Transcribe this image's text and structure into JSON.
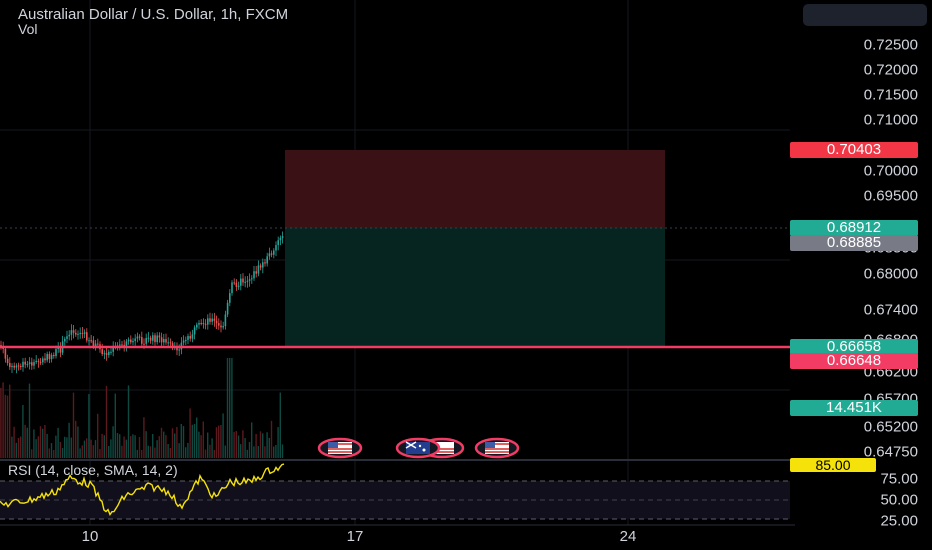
{
  "header": {
    "title": "Australian Dollar / U.S. Dollar, 1h, FXCM",
    "volume_label": "Vol"
  },
  "price_axis": {
    "ticks": [
      "0.72500",
      "0.72000",
      "0.71500",
      "0.71000",
      "0.70000",
      "0.69500",
      "0.68500",
      "0.68000",
      "0.67400",
      "0.66800",
      "0.66200",
      "0.65700",
      "0.65200",
      "0.64750"
    ]
  },
  "tags": {
    "stop_loss": "0.70403",
    "entry": "0.68912",
    "last_price": "0.68885",
    "take_profit": "0.66658",
    "support_line": "0.66648",
    "volume": "14.451K",
    "rsi": "85.00"
  },
  "rsi_panel": {
    "label": "RSI (14, close, SMA, 14, 2)",
    "ticks": [
      "75.00",
      "50.00",
      "25.00"
    ]
  },
  "time_axis": {
    "labels": [
      "10",
      "17",
      "24"
    ]
  },
  "colors": {
    "bull": "#26a69a",
    "bear": "#ef5350",
    "line": "#f23c64",
    "rsi": "#f5e20a",
    "stop_zone": "#3a1114",
    "target_zone": "#062420"
  },
  "events": {
    "icons": [
      "us-flag-event-icon",
      "au-flag-event-icon",
      "us-flag-event-icon",
      "us-flag-event-icon"
    ]
  }
}
